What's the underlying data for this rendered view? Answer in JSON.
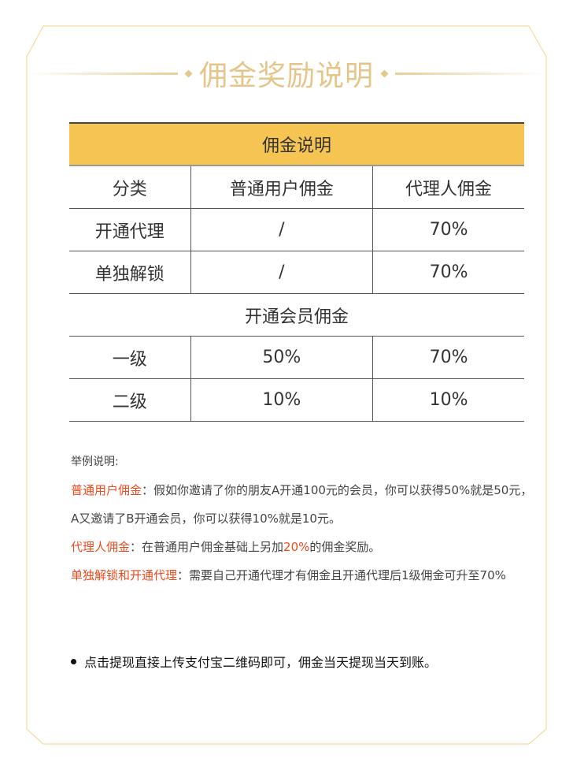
{
  "title": "佣金奖励说明",
  "colors": {
    "accent": "#f5c453",
    "title": "#e5c68a",
    "highlight": "#f04a1e",
    "border": "#f3dca2"
  },
  "table": {
    "caption": "佣金说明",
    "headers": [
      "分类",
      "普通用户佣金",
      "代理人佣金"
    ],
    "rows": [
      [
        "开通代理",
        "/",
        "70%"
      ],
      [
        "单独解锁",
        "/",
        "70%"
      ]
    ],
    "section": "开通会员佣金",
    "rows2": [
      [
        "一级",
        "50%",
        "70%"
      ],
      [
        "二级",
        "10%",
        "10%"
      ]
    ]
  },
  "notes": {
    "heading": "举例说明:",
    "p1_label": "普通用户佣金",
    "p1_text": "：假如你邀请了你的朋友A开通100元的会员，你可以获得50%就是50元，A又邀请了B开通会员，你可以获得10%就是10元。",
    "p2_label": "代理人佣金",
    "p2_text1": "：在普通用户佣金基础上另加",
    "p2_highlight": "20%",
    "p2_text2": "的佣金奖励。",
    "p3_label": "单独解锁和开通代理",
    "p3_text": "：需要自己开通代理才有佣金且开通代理后1级佣金可升至70%"
  },
  "bullet": "点击提现直接上传支付宝二维码即可，佣金当天提现当天到账。"
}
